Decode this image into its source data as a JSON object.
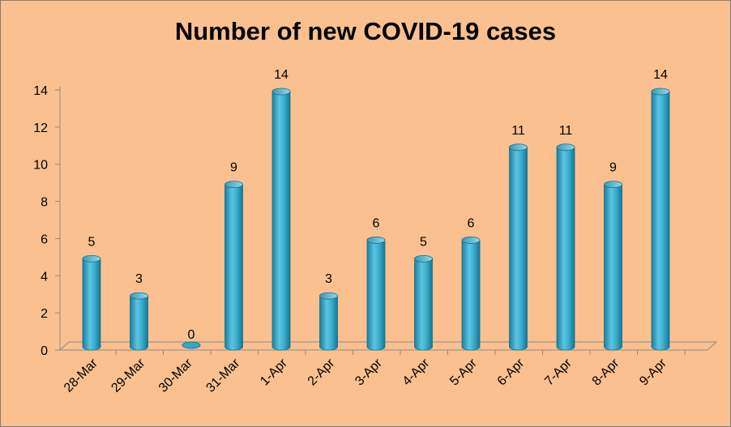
{
  "chart_data": {
    "type": "bar",
    "title": "Number of new COVID-19 cases",
    "categories": [
      "28-Mar",
      "29-Mar",
      "30-Mar",
      "31-Mar",
      "1-Apr",
      "2-Apr",
      "3-Apr",
      "4-Apr",
      "5-Apr",
      "6-Apr",
      "7-Apr",
      "8-Apr",
      "9-Apr"
    ],
    "values": [
      5,
      3,
      0,
      9,
      14,
      3,
      6,
      5,
      6,
      11,
      11,
      9,
      14
    ],
    "ylim": [
      0,
      14
    ],
    "yticks": [
      "0",
      "2",
      "4",
      "6",
      "8",
      "10",
      "12",
      "14"
    ],
    "grid": false,
    "legend": "none",
    "bar_color": "#31A9C9",
    "background_color": "#FAC090"
  }
}
